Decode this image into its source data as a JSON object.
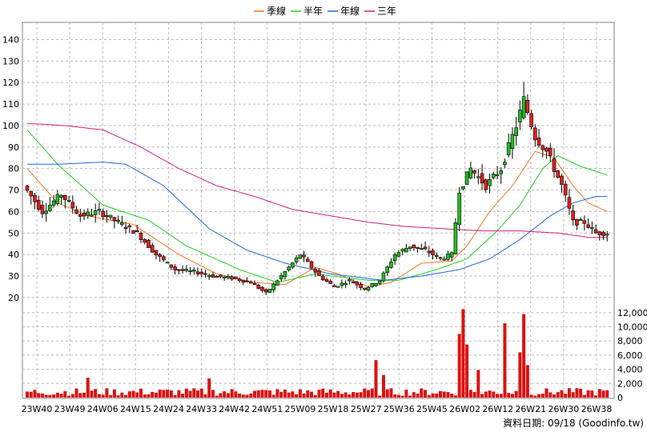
{
  "legend": [
    {
      "name": "季線",
      "color": "#f07820"
    },
    {
      "name": "半年",
      "color": "#22cc22"
    },
    {
      "name": "年線",
      "color": "#2266dd"
    },
    {
      "name": "三年",
      "color": "#d02080"
    }
  ],
  "credit": "資料日期: 09/18 (Goodinfo.tw)",
  "chart_data": {
    "type": "candlestick",
    "price_axis": {
      "ylim": [
        14,
        148
      ],
      "ticks": [
        20,
        30,
        40,
        50,
        60,
        70,
        80,
        90,
        100,
        110,
        120,
        130,
        140
      ]
    },
    "volume_axis": {
      "ylim": [
        0,
        13000
      ],
      "ticks": [
        0,
        2000,
        4000,
        6000,
        8000,
        10000,
        12000
      ],
      "tick_labels": [
        "0",
        "2,000",
        "4,000",
        "6,000",
        "8,000",
        "10,000",
        "12,000"
      ]
    },
    "x_tick_labels": [
      "23W40",
      "23W49",
      "24W06",
      "24W15",
      "24W24",
      "24W33",
      "24W42",
      "24W51",
      "25W09",
      "25W18",
      "25W27",
      "25W36",
      "25W45",
      "26W02",
      "26W12",
      "26W21",
      "26W30",
      "26W38"
    ],
    "up_color": "#22bb22",
    "down_color": "#dd2222",
    "volume_color": "#dd1111",
    "anchors": [
      [
        0,
        72
      ],
      [
        5,
        60
      ],
      [
        10,
        68
      ],
      [
        15,
        58
      ],
      [
        20,
        60
      ],
      [
        25,
        55
      ],
      [
        30,
        50
      ],
      [
        35,
        40
      ],
      [
        40,
        33
      ],
      [
        45,
        32
      ],
      [
        50,
        30
      ],
      [
        55,
        29
      ],
      [
        60,
        27
      ],
      [
        64,
        22
      ],
      [
        68,
        30
      ],
      [
        73,
        40
      ],
      [
        78,
        30
      ],
      [
        82,
        25
      ],
      [
        86,
        28
      ],
      [
        90,
        24
      ],
      [
        94,
        28
      ],
      [
        98,
        40
      ],
      [
        102,
        44
      ],
      [
        106,
        42
      ],
      [
        110,
        38
      ],
      [
        113,
        40
      ],
      [
        115,
        70
      ],
      [
        118,
        80
      ],
      [
        122,
        72
      ],
      [
        126,
        80
      ],
      [
        130,
        100
      ],
      [
        132,
        112
      ],
      [
        135,
        95
      ],
      [
        138,
        88
      ],
      [
        142,
        72
      ],
      [
        145,
        55
      ],
      [
        148,
        55
      ],
      [
        151,
        50
      ],
      [
        153,
        50
      ]
    ],
    "volume_spikes": [
      [
        16,
        2800
      ],
      [
        48,
        2700
      ],
      [
        92,
        5300
      ],
      [
        94,
        3200
      ],
      [
        114,
        9000
      ],
      [
        115,
        12500
      ],
      [
        116,
        7500
      ],
      [
        119,
        3900
      ],
      [
        126,
        10500
      ],
      [
        130,
        6400
      ],
      [
        131,
        11800
      ],
      [
        132,
        4600
      ]
    ],
    "ma_lines": {
      "季線": [
        [
          0,
          80
        ],
        [
          8,
          64
        ],
        [
          16,
          58
        ],
        [
          28,
          54
        ],
        [
          40,
          40
        ],
        [
          50,
          31
        ],
        [
          60,
          27
        ],
        [
          68,
          26
        ],
        [
          76,
          34
        ],
        [
          82,
          31
        ],
        [
          90,
          25
        ],
        [
          96,
          27
        ],
        [
          104,
          36
        ],
        [
          112,
          37
        ],
        [
          116,
          44
        ],
        [
          122,
          60
        ],
        [
          128,
          72
        ],
        [
          134,
          88
        ],
        [
          139,
          85
        ],
        [
          144,
          72
        ],
        [
          148,
          64
        ],
        [
          153,
          60
        ]
      ],
      "半年": [
        [
          0,
          98
        ],
        [
          8,
          82
        ],
        [
          20,
          63
        ],
        [
          32,
          56
        ],
        [
          42,
          44
        ],
        [
          56,
          33
        ],
        [
          66,
          27
        ],
        [
          76,
          31
        ],
        [
          90,
          28
        ],
        [
          98,
          28
        ],
        [
          108,
          33
        ],
        [
          116,
          38
        ],
        [
          124,
          51
        ],
        [
          130,
          63
        ],
        [
          136,
          80
        ],
        [
          140,
          86
        ],
        [
          146,
          81
        ],
        [
          153,
          77
        ]
      ],
      "年線": [
        [
          0,
          82
        ],
        [
          8,
          82
        ],
        [
          20,
          83
        ],
        [
          26,
          82
        ],
        [
          36,
          72
        ],
        [
          48,
          52
        ],
        [
          58,
          42
        ],
        [
          68,
          36
        ],
        [
          80,
          31
        ],
        [
          94,
          28
        ],
        [
          104,
          30
        ],
        [
          114,
          33
        ],
        [
          122,
          38
        ],
        [
          130,
          47
        ],
        [
          138,
          58
        ],
        [
          144,
          64
        ],
        [
          150,
          67
        ],
        [
          153,
          67
        ]
      ],
      "三年": [
        [
          0,
          101
        ],
        [
          10,
          100
        ],
        [
          20,
          98
        ],
        [
          30,
          90
        ],
        [
          40,
          80
        ],
        [
          50,
          72
        ],
        [
          60,
          67
        ],
        [
          70,
          61
        ],
        [
          80,
          58
        ],
        [
          90,
          55
        ],
        [
          100,
          53
        ],
        [
          110,
          52
        ],
        [
          120,
          51
        ],
        [
          130,
          51
        ],
        [
          140,
          50
        ],
        [
          148,
          48
        ],
        [
          153,
          48
        ]
      ]
    }
  }
}
